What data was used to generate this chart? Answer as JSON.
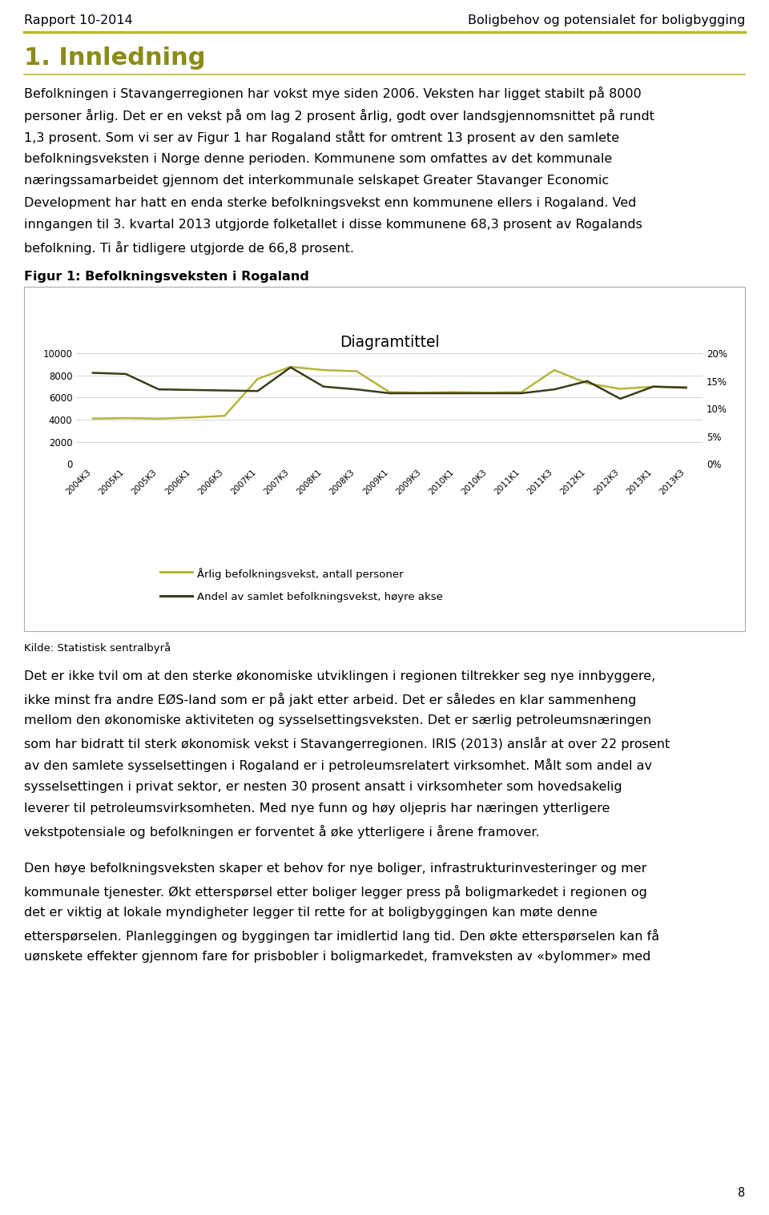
{
  "header_left": "Rapport 10-2014",
  "header_right": "Boligbehov og potensialet for boligbygging",
  "header_line_color": "#b8b832",
  "section_title": "1. Innledning",
  "section_title_color": "#8b8b1a",
  "section_underline_color": "#b8b832",
  "para1_lines": [
    "Befolkningen i Stavangerregionen har vokst mye siden 2006. Veksten har ligget stabilt på 8000",
    "personer årlig. Det er en vekst på om lag 2 prosent årlig, godt over landsgjennomsnittet på rundt",
    "1,3 prosent. Som vi ser av Figur 1 har Rogaland stått for omtrent 13 prosent av den samlete",
    "befolkningsveksten i Norge denne perioden. Kommunene som omfattes av det kommunale",
    "næringssamarbeidet gjennom det interkommunale selskapet Greater Stavanger Economic",
    "Development har hatt en enda sterke befolkningsvekst enn kommunene ellers i Rogaland. Ved",
    "inngangen til 3. kvartal 2013 utgjorde folketallet i disse kommunene 68,3 prosent av Rogalands",
    "befolkning. Ti år tidligere utgjorde de 66,8 prosent."
  ],
  "figure_label": "Figur 1: Befolkningsveksten i Rogaland",
  "chart_title": "Diagramtittel",
  "x_labels": [
    "2004K3",
    "2005K1",
    "2005K3",
    "2006K1",
    "2006K3",
    "2007K1",
    "2007K3",
    "2008K1",
    "2008K3",
    "2009K1",
    "2009K3",
    "2010K1",
    "2010K3",
    "2011K1",
    "2011K3",
    "2012K1",
    "2012K3",
    "2013K1",
    "2013K3"
  ],
  "series1_values": [
    4100,
    4150,
    4100,
    4200,
    4350,
    7700,
    8800,
    8500,
    8400,
    6500,
    6450,
    6500,
    6450,
    6500,
    8500,
    7300,
    6800,
    7000,
    6950
  ],
  "series2_values": [
    0.165,
    0.163,
    0.135,
    0.134,
    0.133,
    0.132,
    0.175,
    0.14,
    0.135,
    0.128,
    0.128,
    0.128,
    0.128,
    0.128,
    0.135,
    0.15,
    0.118,
    0.14,
    0.138
  ],
  "series1_color": "#b5b53c",
  "series2_color": "#3c3c1a",
  "legend1": "Årlig befolkningsvekst, antall personer",
  "legend2": "Andel av samlet befolkningsvekst, høyre akse",
  "source_text": "Kilde: Statistisk sentralbyrå",
  "para2_lines": [
    "Det er ikke tvil om at den sterke økonomiske utviklingen i regionen tiltrekker seg nye innbyggere,",
    "ikke minst fra andre EØS-land som er på jakt etter arbeid. Det er således en klar sammenheng",
    "mellom den økonomiske aktiviteten og sysselsettingsveksten. Det er særlig petroleumsnæringen",
    "som har bidratt til sterk økonomisk vekst i Stavangerregionen. IRIS (2013) anslår at over 22 prosent",
    "av den samlete sysselsettingen i Rogaland er i petroleumsrelatert virksomhet. Målt som andel av",
    "sysselsettingen i privat sektor, er nesten 30 prosent ansatt i virksomheter som hovedsakelig",
    "leverer til petroleumsvirksomheten. Med nye funn og høy oljepris har næringen ytterligere",
    "vekstpotensiale og befolkningen er forventet å øke ytterligere i årene framover."
  ],
  "para3_lines": [
    "Den høye befolkningsveksten skaper et behov for nye boliger, infrastrukturinvesteringer og mer",
    "kommunale tjenester. Økt etterspørsel etter boliger legger press på boligmarkedet i regionen og",
    "det er viktig at lokale myndigheter legger til rette for at boligbyggingen kan møte denne",
    "etterspørselen. Planleggingen og byggingen tar imidlertid lang tid. Den økte etterspørselen kan få",
    "uønskete effekter gjennom fare for prisbobler i boligmarkedet, framveksten av «bylommer» med"
  ],
  "page_number": "8",
  "bg_color": "#ffffff",
  "text_color": "#000000"
}
